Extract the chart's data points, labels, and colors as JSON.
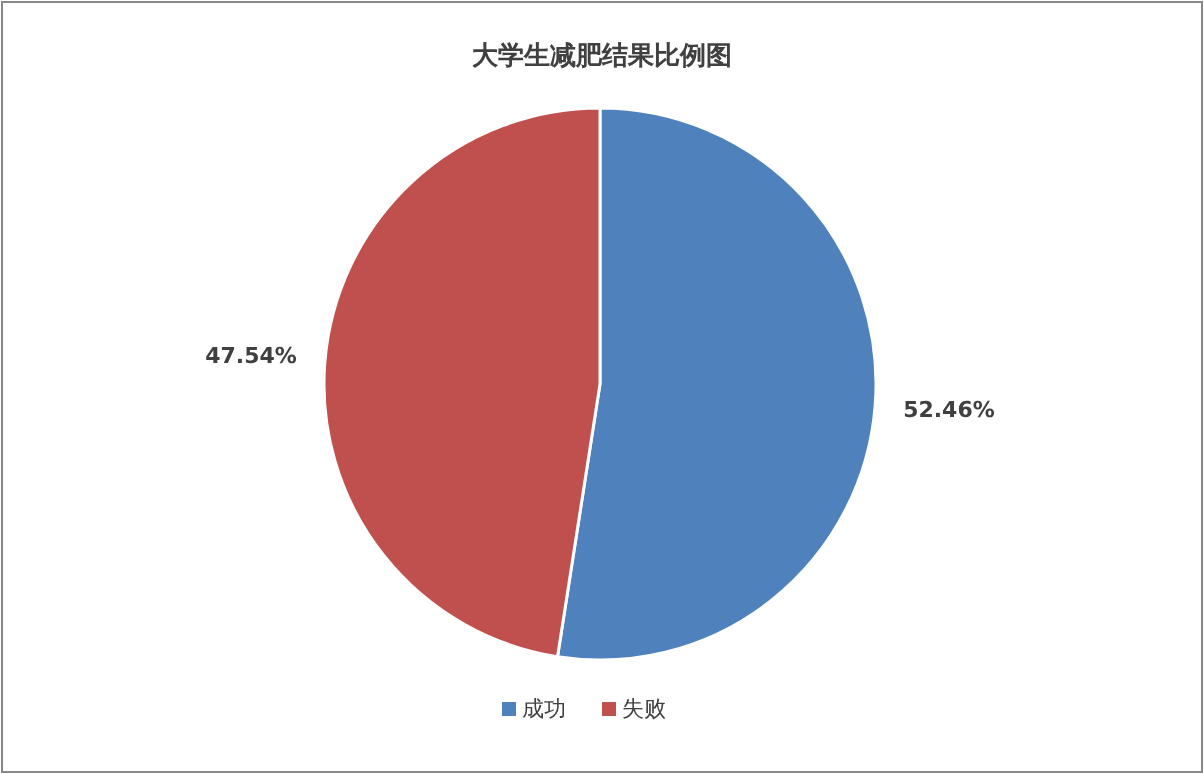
{
  "chart_data": {
    "type": "pie",
    "title": "大学生减肥结果比例图",
    "categories": [
      "成功",
      "失败"
    ],
    "values": [
      52.46,
      47.54
    ],
    "colors": [
      "#4f81bd",
      "#c0504d"
    ],
    "value_labels": [
      "52.46%",
      "47.54%"
    ],
    "legend": "bottom"
  }
}
